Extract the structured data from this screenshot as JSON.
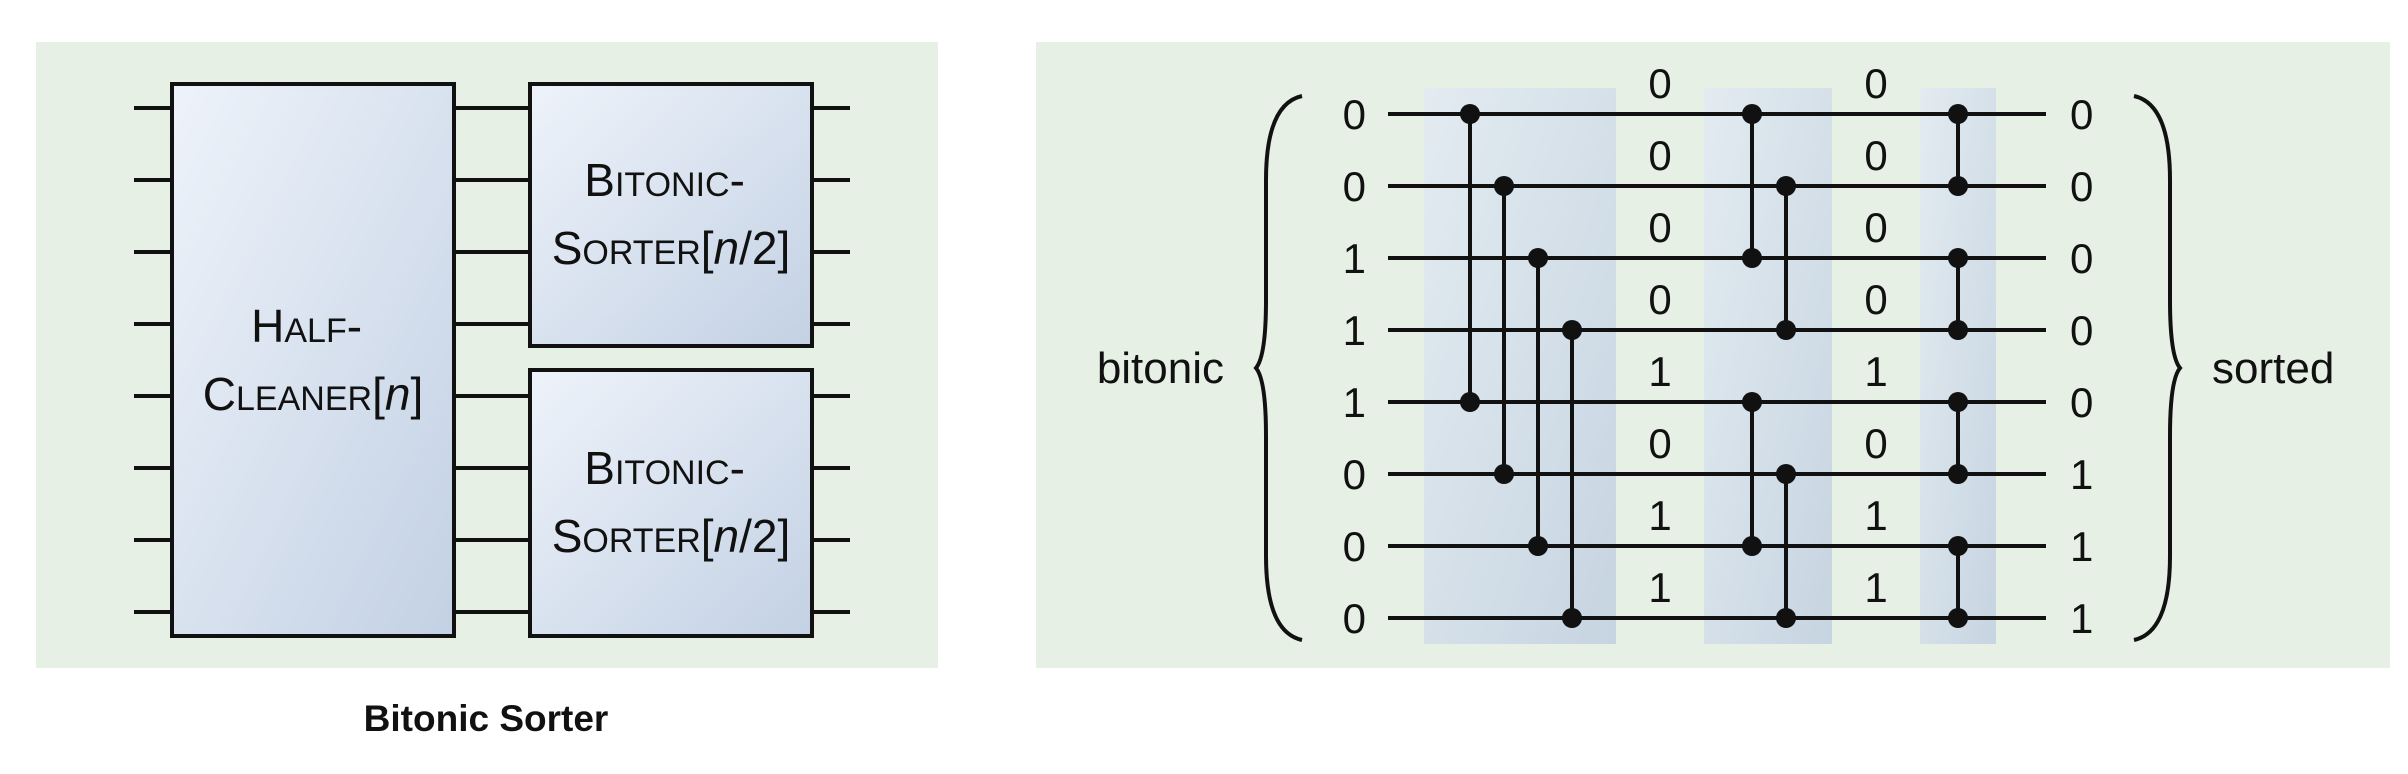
{
  "caption": "Bitonic Sorter",
  "left_diagram": {
    "half_cleaner": {
      "line1": "Half-",
      "line2": "Cleaner[n]"
    },
    "bitonic_sorter_label": {
      "line1": "Bitonic-",
      "line2": "Sorter[n/2]"
    },
    "wire_count": 8
  },
  "right_diagram": {
    "left_label": "bitonic",
    "right_label": "sorted",
    "inputs": [
      "0",
      "0",
      "1",
      "1",
      "1",
      "0",
      "0",
      "0"
    ],
    "after_stage_1": [
      "0",
      "0",
      "0",
      "0",
      "1",
      "0",
      "1",
      "1"
    ],
    "after_stage_2": [
      "0",
      "0",
      "0",
      "0",
      "1",
      "0",
      "1",
      "1"
    ],
    "outputs": [
      "0",
      "0",
      "0",
      "0",
      "0",
      "1",
      "1",
      "1"
    ],
    "stage_1_comparators": [
      [
        0,
        4
      ],
      [
        1,
        5
      ],
      [
        2,
        6
      ],
      [
        3,
        7
      ]
    ],
    "stage_2_comparators": [
      [
        0,
        2
      ],
      [
        1,
        3
      ],
      [
        4,
        6
      ],
      [
        5,
        7
      ]
    ],
    "stage_3_comparators": [
      [
        0,
        1
      ],
      [
        2,
        3
      ],
      [
        4,
        5
      ],
      [
        6,
        7
      ]
    ]
  },
  "colors": {
    "panel_background": "#e6f0e4",
    "box_fill_light": "#eef3fa",
    "box_fill_dark": "#c3d1e4",
    "line": "#111111"
  }
}
